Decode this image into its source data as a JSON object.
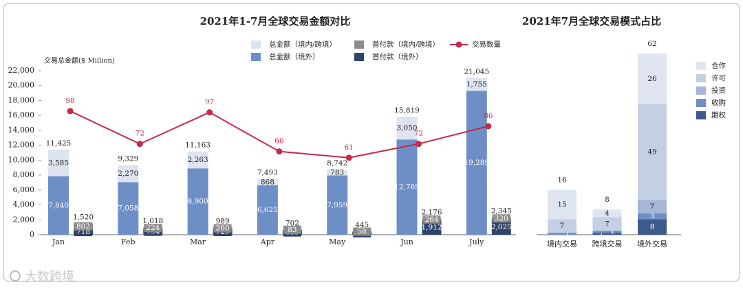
{
  "chart_data": [
    {
      "type": "bar",
      "title": "2021年1-7月全球交易金额对比",
      "y_label": "交易总金额($ Million)",
      "categories": [
        "Jan",
        "Feb",
        "Mar",
        "Apr",
        "May",
        "Jun",
        "July"
      ],
      "ylim": [
        0,
        22000
      ],
      "yticks": [
        0,
        {
          "value": 2000,
          "label": "2,000"
        },
        {
          "value": 4000,
          "label": "4,000"
        },
        {
          "value": 6000,
          "label": "6,000"
        },
        {
          "value": 8000,
          "label": "8,000"
        },
        {
          "value": 10000,
          "label": "10,000"
        },
        {
          "value": 12000,
          "label": "12,000"
        },
        {
          "value": 14000,
          "label": "14,000"
        },
        {
          "value": 16000,
          "label": "16,000"
        },
        {
          "value": 18000,
          "label": "18,000"
        },
        {
          "value": 20000,
          "label": "20,000"
        },
        {
          "value": 22000,
          "label": "22,000"
        }
      ],
      "y2lim": [
        0,
        130
      ],
      "grid": false,
      "series": [
        {
          "name": "总金额（境外）",
          "color": "#6e8fc6",
          "stack": 0,
          "values": [
            7840,
            7058,
            8900,
            6625,
            7959,
            12769,
            19289
          ],
          "value_labels": [
            "7,840",
            "7,058",
            "8,900",
            "6,625",
            "7,959",
            "12,769",
            "19,289"
          ]
        },
        {
          "name": "总金额（境内/跨境）",
          "color": "#dde4f0",
          "stack": 0,
          "values": [
            3585,
            2270,
            2263,
            868,
            783,
            3050,
            1755
          ],
          "value_labels": [
            "3,585",
            "2,270",
            "2,263",
            "868",
            "783",
            "3,050",
            "1,755"
          ]
        },
        {
          "name": "首付款（境外）",
          "color": "#2e4469",
          "stack": 1,
          "values": [
            718,
            794,
            729,
            619,
            387,
            1912,
            2025
          ],
          "value_labels": [
            "718",
            "794",
            "729",
            "619",
            "387",
            "1,912",
            "2,025"
          ]
        },
        {
          "name": "首付款（境内/跨境）",
          "color": "#8c8c8c",
          "stack": 1,
          "values": [
            802,
            224,
            260,
            83,
            58,
            264,
            320
          ],
          "value_labels": [
            "802",
            "224",
            "260",
            "83",
            "58",
            "264",
            "320"
          ]
        },
        {
          "name": "交易数量",
          "type": "line",
          "axis": "y2",
          "color": "#c8284a",
          "values": [
            98,
            72,
            97,
            66,
            61,
            72,
            86
          ]
        }
      ],
      "stack_totals": [
        {
          "values": [
            11425,
            9329,
            11163,
            7493,
            8742,
            15819,
            21045
          ],
          "value_labels": [
            "11,425",
            "9,329",
            "11,163",
            "7,493",
            "8,742",
            "15,819",
            "21,045"
          ]
        },
        {
          "values": [
            1520,
            1018,
            989,
            702,
            445,
            2176,
            2345
          ],
          "value_labels": [
            "1,520",
            "1,018",
            "989",
            "702",
            "445",
            "2,176",
            "2,345"
          ]
        }
      ]
    },
    {
      "type": "bar",
      "title": "2021年7月全球交易模式占比",
      "categories": [
        "境内交易",
        "跨境交易",
        "境外交易"
      ],
      "ylim": [
        0,
        100
      ],
      "series": [
        {
          "name": "期权",
          "color": "#3d5a8c",
          "values": [
            null,
            1,
            8
          ]
        },
        {
          "name": "收购",
          "color": "#6f8fc2",
          "values": [
            1,
            1,
            3
          ]
        },
        {
          "name": "投资",
          "color": "#a5b6d6",
          "values": [
            null,
            null,
            7
          ]
        },
        {
          "name": "许可",
          "color": "#c3cfe3",
          "values": [
            7,
            7,
            49
          ]
        },
        {
          "name": "合作",
          "color": "#dfe6f1",
          "values": [
            15,
            4,
            26
          ]
        }
      ],
      "totals": [
        16,
        8,
        62
      ]
    }
  ],
  "watermark": "大数跨境"
}
